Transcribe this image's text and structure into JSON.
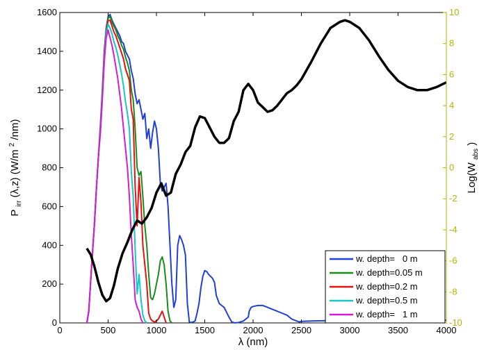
{
  "chart_data": {
    "type": "line",
    "title": "",
    "xlabel": "λ (nm)",
    "ylabel_left": {
      "main": "P",
      "sub": "irr",
      "rest": "(λ,z) (W/m",
      "sup": "2",
      "end": "/nm)"
    },
    "ylabel_right": {
      "main": "Log(W",
      "sub": "abs",
      "end": ")"
    },
    "xlim": [
      0,
      4000
    ],
    "ylim_left": [
      0,
      1600
    ],
    "ylim_right": [
      -10,
      10
    ],
    "xticks": [
      "0",
      "500",
      "1000",
      "1500",
      "2000",
      "2500",
      "3000",
      "3500",
      "4000"
    ],
    "yticks_left": [
      "0",
      "200",
      "400",
      "600",
      "800",
      "1000",
      "1200",
      "1400",
      "1600"
    ],
    "yticks_right": [
      "-10",
      "-8",
      "-6",
      "-4",
      "-2",
      "0",
      "2",
      "4",
      "6",
      "8",
      "10"
    ],
    "legend_position": "bottom-right",
    "series": [
      {
        "name": "w. depth=   0 m",
        "color": "#1f3fd6",
        "axis": "left",
        "x": [
          280,
          300,
          330,
          360,
          380,
          400,
          420,
          440,
          460,
          480,
          500,
          520,
          540,
          560,
          580,
          600,
          620,
          640,
          660,
          680,
          700,
          720,
          740,
          760,
          780,
          800,
          820,
          840,
          860,
          880,
          900,
          920,
          940,
          960,
          980,
          1000,
          1020,
          1040,
          1060,
          1080,
          1100,
          1120,
          1140,
          1160,
          1180,
          1200,
          1220,
          1240,
          1260,
          1280,
          1300,
          1320,
          1340,
          1360,
          1380,
          1400,
          1420,
          1440,
          1460,
          1480,
          1500,
          1520,
          1540,
          1560,
          1580,
          1600,
          1620,
          1650,
          1700,
          1750,
          1780,
          1800,
          1810,
          1850,
          1900,
          1950,
          1960,
          1980,
          2000,
          2050,
          2100,
          2150,
          2200,
          2250,
          2300,
          2350,
          2400,
          2450,
          2480,
          2500,
          2600,
          2800,
          3000,
          3200,
          3500,
          3800,
          4000
        ],
        "y": [
          0,
          60,
          300,
          520,
          700,
          860,
          1020,
          1200,
          1400,
          1520,
          1580,
          1590,
          1560,
          1540,
          1520,
          1500,
          1480,
          1450,
          1440,
          1400,
          1380,
          1360,
          1300,
          1260,
          1180,
          1130,
          1150,
          1100,
          1050,
          1080,
          950,
          1000,
          900,
          980,
          1040,
          1000,
          900,
          720,
          680,
          700,
          720,
          600,
          400,
          200,
          80,
          120,
          400,
          450,
          430,
          400,
          350,
          100,
          5,
          2,
          5,
          10,
          50,
          100,
          180,
          240,
          270,
          265,
          250,
          240,
          230,
          210,
          140,
          100,
          80,
          30,
          5,
          2,
          0,
          2,
          10,
          30,
          60,
          80,
          85,
          90,
          90,
          80,
          70,
          60,
          50,
          40,
          20,
          10,
          5,
          8,
          10,
          12,
          12,
          14,
          14,
          14,
          14
        ]
      },
      {
        "name": "w. depth=0.05 m",
        "color": "#1a8a1a",
        "axis": "left",
        "x": [
          280,
          300,
          330,
          360,
          380,
          400,
          420,
          440,
          460,
          480,
          500,
          520,
          540,
          560,
          580,
          600,
          620,
          640,
          660,
          680,
          700,
          720,
          740,
          760,
          780,
          800,
          820,
          840,
          860,
          880,
          900,
          920,
          940,
          960,
          980,
          1000,
          1020,
          1040,
          1060,
          1080,
          1100,
          1120,
          1140,
          1160
        ],
        "y": [
          0,
          60,
          300,
          520,
          700,
          860,
          1010,
          1190,
          1390,
          1510,
          1570,
          1580,
          1550,
          1530,
          1510,
          1480,
          1460,
          1430,
          1410,
          1370,
          1340,
          1300,
          1200,
          1150,
          1000,
          800,
          760,
          780,
          650,
          500,
          400,
          250,
          130,
          120,
          150,
          200,
          250,
          320,
          340,
          300,
          200,
          60,
          10,
          0
        ]
      },
      {
        "name": "w. depth=0.2 m",
        "color": "#e21212",
        "axis": "left",
        "x": [
          280,
          300,
          330,
          360,
          380,
          400,
          420,
          440,
          460,
          480,
          500,
          520,
          540,
          560,
          580,
          600,
          620,
          640,
          660,
          680,
          700,
          720,
          740,
          760,
          780,
          800,
          820,
          840,
          860,
          880,
          900,
          920,
          940,
          960,
          980,
          1000,
          1020,
          1040,
          1060,
          1080,
          1100
        ],
        "y": [
          0,
          60,
          300,
          520,
          700,
          860,
          1000,
          1180,
          1380,
          1500,
          1560,
          1560,
          1530,
          1500,
          1480,
          1450,
          1420,
          1390,
          1360,
          1310,
          1280,
          1250,
          1100,
          1050,
          700,
          500,
          750,
          620,
          400,
          300,
          200,
          50,
          20,
          10,
          5,
          10,
          20,
          40,
          60,
          30,
          0
        ]
      },
      {
        "name": "w. depth=0.5 m",
        "color": "#17c6c6",
        "axis": "left",
        "x": [
          280,
          300,
          330,
          360,
          380,
          400,
          420,
          440,
          460,
          480,
          500,
          520,
          540,
          560,
          580,
          600,
          620,
          640,
          660,
          680,
          700,
          720,
          740,
          760,
          780,
          800,
          820,
          840,
          860,
          880,
          900
        ],
        "y": [
          0,
          60,
          300,
          520,
          700,
          860,
          990,
          1170,
          1360,
          1490,
          1540,
          1520,
          1490,
          1450,
          1420,
          1380,
          1330,
          1280,
          1220,
          1140,
          1080,
          1000,
          780,
          650,
          380,
          150,
          250,
          120,
          40,
          10,
          0
        ]
      },
      {
        "name": "w. depth=   1 m",
        "color": "#d61ad6",
        "axis": "left",
        "x": [
          280,
          300,
          330,
          360,
          380,
          400,
          420,
          440,
          460,
          480,
          500,
          520,
          540,
          560,
          580,
          600,
          620,
          640,
          660,
          680,
          700,
          720,
          740,
          760,
          780,
          800,
          820,
          840,
          860
        ],
        "y": [
          0,
          60,
          300,
          520,
          700,
          860,
          980,
          1150,
          1340,
          1470,
          1510,
          1470,
          1430,
          1380,
          1320,
          1260,
          1180,
          1100,
          1000,
          900,
          800,
          650,
          450,
          300,
          120,
          80,
          60,
          20,
          0
        ]
      },
      {
        "name": "",
        "color": "#000000",
        "axis": "right",
        "x": [
          280,
          320,
          360,
          400,
          440,
          480,
          520,
          560,
          600,
          650,
          700,
          750,
          800,
          850,
          900,
          950,
          1000,
          1050,
          1100,
          1150,
          1200,
          1250,
          1300,
          1350,
          1400,
          1450,
          1500,
          1550,
          1600,
          1650,
          1700,
          1750,
          1800,
          1850,
          1900,
          1950,
          2000,
          2050,
          2100,
          2150,
          2200,
          2250,
          2300,
          2350,
          2400,
          2450,
          2500,
          2600,
          2700,
          2800,
          2900,
          2950,
          3000,
          3100,
          3200,
          3300,
          3400,
          3500,
          3600,
          3700,
          3800,
          3900,
          4000
        ],
        "y": [
          -5.2,
          -5.6,
          -6.4,
          -7.4,
          -8.2,
          -8.6,
          -8.4,
          -7.6,
          -6.5,
          -5.5,
          -4.8,
          -4.0,
          -3.4,
          -3.6,
          -3.2,
          -2.6,
          -1.6,
          -1.0,
          -1.8,
          -1.6,
          -0.4,
          0.2,
          1.0,
          1.4,
          2.6,
          3.3,
          3.2,
          2.6,
          2.0,
          1.6,
          1.6,
          1.9,
          3.0,
          3.6,
          5.0,
          5.4,
          5.0,
          4.2,
          3.9,
          3.6,
          3.7,
          4.0,
          4.4,
          4.8,
          5.0,
          5.3,
          5.7,
          6.8,
          8.0,
          9.0,
          9.4,
          9.5,
          9.4,
          9.0,
          8.2,
          7.2,
          6.3,
          5.6,
          5.2,
          5.0,
          5.0,
          5.2,
          5.5
        ]
      }
    ]
  }
}
